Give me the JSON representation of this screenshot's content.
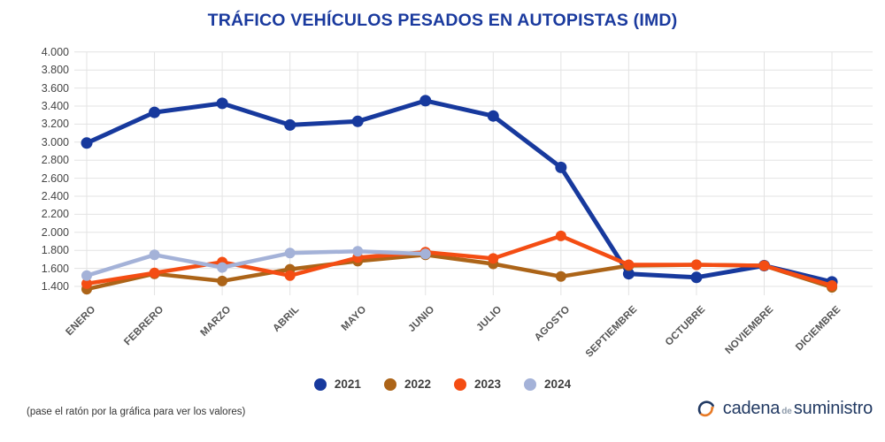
{
  "title": "TRÁFICO VEHÍCULOS PESADOS EN AUTOPISTAS (IMD)",
  "footer": {
    "hint": "(pase el ratón por la gráfica para ver los valores)"
  },
  "logo": {
    "word1": "cadena",
    "word2": "de",
    "word3": "suministro",
    "icon": "circular-arrows-icon",
    "navy": "#223a63",
    "orange": "#e87a25"
  },
  "colors": {
    "title": "#1a3a9e",
    "grid": "#e3e3e3",
    "axis_text": "#454545"
  },
  "chart_data": {
    "type": "line",
    "title": "TRÁFICO VEHÍCULOS PESADOS EN AUTOPISTAS (IMD)",
    "xlabel": "",
    "ylabel": "",
    "ylim": [
      1400,
      4000
    ],
    "ytick_step": 200,
    "y_ticks": [
      "4.000",
      "3.800",
      "3.600",
      "3.400",
      "3.200",
      "3.000",
      "2.800",
      "2.600",
      "2.400",
      "2.200",
      "2.000",
      "1.800",
      "1.600",
      "1.400"
    ],
    "grid": true,
    "legend_position": "bottom",
    "categories": [
      "ENERO",
      "FEBRERO",
      "MARZO",
      "ABRIL",
      "MAYO",
      "JUNIO",
      "JULIO",
      "AGOSTO",
      "SEPTIEMBRE",
      "OCTUBRE",
      "NOVIEMBRE",
      "DICIEMBRE"
    ],
    "series": [
      {
        "name": "2021",
        "color": "#17399d",
        "values": [
          2990,
          3330,
          3430,
          3190,
          3230,
          3460,
          3290,
          2720,
          1540,
          1500,
          1630,
          1450
        ]
      },
      {
        "name": "2022",
        "color": "#ac6418",
        "values": [
          1370,
          1540,
          1460,
          1590,
          1680,
          1750,
          1650,
          1510,
          1630,
          1640,
          1630,
          1390
        ]
      },
      {
        "name": "2023",
        "color": "#f44d13",
        "values": [
          1430,
          1550,
          1670,
          1520,
          1720,
          1780,
          1710,
          1960,
          1640,
          1640,
          1630,
          1410
        ]
      },
      {
        "name": "2024",
        "color": "#a4b2d8",
        "values": [
          1520,
          1750,
          1610,
          1770,
          1790,
          1760
        ]
      }
    ]
  }
}
